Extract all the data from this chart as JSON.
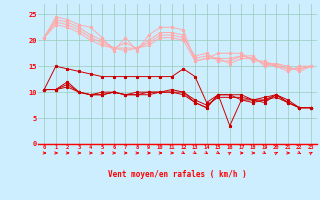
{
  "xlabel": "Vent moyen/en rafales ( km/h )",
  "background_color": "#cceeff",
  "grid_color": "#99ccbb",
  "x": [
    0,
    1,
    2,
    3,
    4,
    5,
    6,
    7,
    8,
    9,
    10,
    11,
    12,
    13,
    14,
    15,
    16,
    17,
    18,
    19,
    20,
    21,
    22,
    23
  ],
  "lines_light": [
    [
      20.5,
      24.5,
      24.0,
      23.0,
      22.5,
      20.5,
      18.0,
      20.5,
      18.0,
      21.0,
      22.5,
      22.5,
      22.0,
      16.0,
      16.5,
      17.5,
      17.5,
      17.5,
      16.0,
      16.0,
      15.0,
      14.0,
      15.0,
      15.0
    ],
    [
      20.5,
      24.0,
      23.5,
      22.5,
      21.0,
      20.0,
      18.5,
      19.5,
      18.5,
      20.0,
      21.5,
      21.5,
      21.0,
      16.5,
      17.0,
      16.5,
      16.5,
      17.0,
      16.5,
      15.5,
      15.0,
      14.5,
      14.5,
      15.0
    ],
    [
      20.5,
      23.5,
      23.0,
      22.0,
      20.5,
      19.5,
      18.5,
      18.5,
      18.5,
      19.5,
      21.0,
      21.0,
      20.5,
      17.0,
      17.5,
      16.0,
      16.0,
      17.0,
      17.0,
      15.0,
      15.5,
      15.0,
      14.0,
      15.0
    ],
    [
      20.5,
      23.0,
      22.5,
      21.5,
      20.0,
      19.0,
      18.5,
      18.0,
      18.5,
      19.0,
      20.5,
      20.5,
      20.0,
      16.0,
      16.5,
      16.5,
      15.5,
      16.5,
      16.5,
      15.5,
      15.5,
      14.5,
      14.5,
      15.0
    ]
  ],
  "lines_dark": [
    [
      10.5,
      15.0,
      14.5,
      14.0,
      13.5,
      13.0,
      13.0,
      13.0,
      13.0,
      13.0,
      13.0,
      13.0,
      14.5,
      13.0,
      8.0,
      9.5,
      9.5,
      9.5,
      8.5,
      9.0,
      9.5,
      8.0,
      7.0,
      7.0
    ],
    [
      10.5,
      10.5,
      12.0,
      10.0,
      9.5,
      10.0,
      10.0,
      9.5,
      10.0,
      10.0,
      10.0,
      10.0,
      10.0,
      8.0,
      7.0,
      9.5,
      3.5,
      8.5,
      8.0,
      8.5,
      9.5,
      8.0,
      7.0,
      7.0
    ],
    [
      10.5,
      10.5,
      11.5,
      10.0,
      9.5,
      9.5,
      10.0,
      9.5,
      9.5,
      10.0,
      10.0,
      10.0,
      9.5,
      8.0,
      7.0,
      9.5,
      9.5,
      8.5,
      8.5,
      8.5,
      9.0,
      8.0,
      7.0,
      7.0
    ],
    [
      10.5,
      10.5,
      11.0,
      10.0,
      9.5,
      9.5,
      10.0,
      9.5,
      9.5,
      9.5,
      10.0,
      10.5,
      10.0,
      8.5,
      7.5,
      9.0,
      9.0,
      9.0,
      8.5,
      8.0,
      9.5,
      8.5,
      7.0,
      7.0
    ]
  ],
  "light_color": "#ffaaaa",
  "dark_color": "#cc0000",
  "ylim": [
    0,
    27
  ],
  "yticks": [
    0,
    5,
    10,
    15,
    20,
    25
  ],
  "arrow_angles": [
    0,
    0,
    0,
    0,
    0,
    0,
    0,
    0,
    0,
    0,
    0,
    0,
    -45,
    -45,
    -45,
    -45,
    45,
    0,
    0,
    -45,
    45,
    0,
    -45,
    45
  ]
}
